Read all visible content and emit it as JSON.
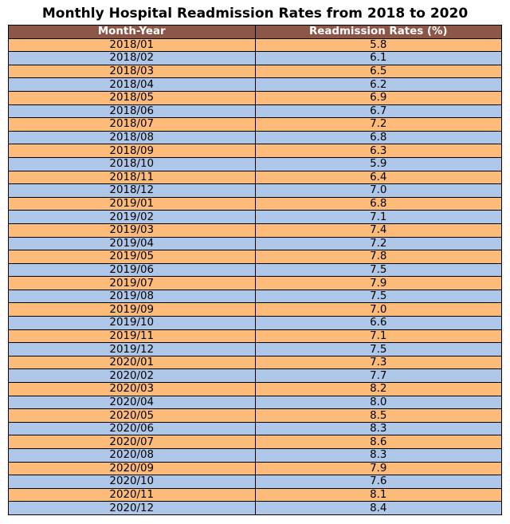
{
  "chart_data": {
    "type": "table",
    "title": "Monthly Hospital Readmission Rates from 2018 to 2020",
    "columns": [
      "Month-Year",
      "Readmission Rates (%)"
    ],
    "rows": [
      [
        "2018/01",
        "5.8"
      ],
      [
        "2018/02",
        "6.1"
      ],
      [
        "2018/03",
        "6.5"
      ],
      [
        "2018/04",
        "6.2"
      ],
      [
        "2018/05",
        "6.9"
      ],
      [
        "2018/06",
        "6.7"
      ],
      [
        "2018/07",
        "7.2"
      ],
      [
        "2018/08",
        "6.8"
      ],
      [
        "2018/09",
        "6.3"
      ],
      [
        "2018/10",
        "5.9"
      ],
      [
        "2018/11",
        "6.4"
      ],
      [
        "2018/12",
        "7.0"
      ],
      [
        "2019/01",
        "6.8"
      ],
      [
        "2019/02",
        "7.1"
      ],
      [
        "2019/03",
        "7.4"
      ],
      [
        "2019/04",
        "7.2"
      ],
      [
        "2019/05",
        "7.8"
      ],
      [
        "2019/06",
        "7.5"
      ],
      [
        "2019/07",
        "7.9"
      ],
      [
        "2019/08",
        "7.5"
      ],
      [
        "2019/09",
        "7.0"
      ],
      [
        "2019/10",
        "6.6"
      ],
      [
        "2019/11",
        "7.1"
      ],
      [
        "2019/12",
        "7.5"
      ],
      [
        "2020/01",
        "7.3"
      ],
      [
        "2020/02",
        "7.7"
      ],
      [
        "2020/03",
        "8.2"
      ],
      [
        "2020/04",
        "8.0"
      ],
      [
        "2020/05",
        "8.5"
      ],
      [
        "2020/06",
        "8.3"
      ],
      [
        "2020/07",
        "8.6"
      ],
      [
        "2020/08",
        "8.3"
      ],
      [
        "2020/09",
        "7.9"
      ],
      [
        "2020/10",
        "7.6"
      ],
      [
        "2020/11",
        "8.1"
      ],
      [
        "2020/12",
        "8.4"
      ]
    ]
  },
  "colors": {
    "header_bg": "#8c5748",
    "row_odd_bg": "#fdbb79",
    "row_even_bg": "#aec7e8"
  }
}
